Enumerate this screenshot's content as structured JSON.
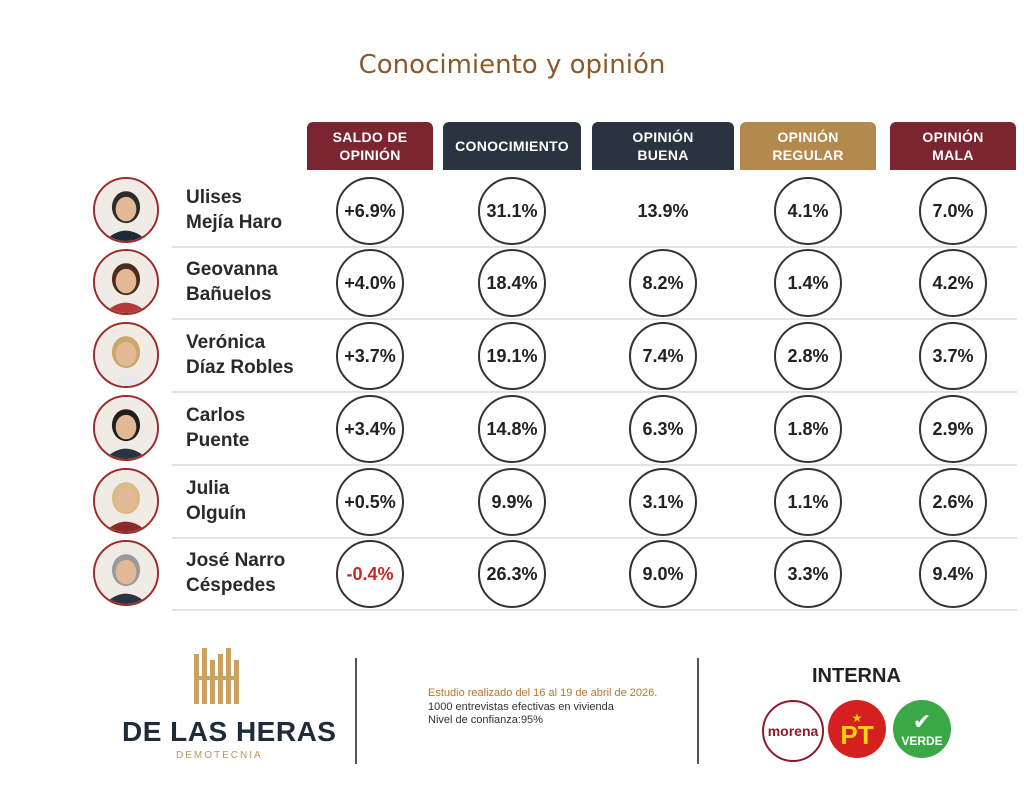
{
  "chart_data": {
    "type": "table",
    "title": "Conocimiento y opinión",
    "columns": [
      "SALDO DE OPINIÓN",
      "CONOCIMIENTO",
      "OPINIÓN BUENA",
      "OPINIÓN REGULAR",
      "OPINIÓN MALA"
    ],
    "column_colors": [
      "#7b2530",
      "#2a3440",
      "#2a3440",
      "#b4894e",
      "#7b2530"
    ],
    "rows": [
      {
        "name_line1": "Ulises",
        "name_line2": "Mejía Haro",
        "values": [
          "+6.9%",
          "31.1%",
          "13.9%",
          "4.1%",
          "7.0%"
        ]
      },
      {
        "name_line1": "Geovanna",
        "name_line2": "Bañuelos",
        "values": [
          "+4.0%",
          "18.4%",
          "8.2%",
          "1.4%",
          "4.2%"
        ]
      },
      {
        "name_line1": "Verónica",
        "name_line2": "Díaz Robles",
        "values": [
          "+3.7%",
          "19.1%",
          "7.4%",
          "2.8%",
          "3.7%"
        ]
      },
      {
        "name_line1": "Carlos",
        "name_line2": "Puente",
        "values": [
          "+3.4%",
          "14.8%",
          "6.3%",
          "1.8%",
          "2.9%"
        ]
      },
      {
        "name_line1": "Julia",
        "name_line2": "Olguín",
        "values": [
          "+0.5%",
          "9.9%",
          "3.1%",
          "1.1%",
          "2.6%"
        ]
      },
      {
        "name_line1": "José Narro",
        "name_line2": "Céspedes",
        "values": [
          "-0.4%",
          "26.3%",
          "9.0%",
          "3.3%",
          "9.4%"
        ]
      }
    ]
  },
  "footer": {
    "brand": "DE LAS HERAS",
    "brand_sub": "DEMOTECNIA",
    "study_line1": "Estudio realizado del 16 al 19 de abril de 2026.",
    "study_line2": "1000 entrevistas efectivas en vivienda",
    "study_line3": "Nivel de confianza:95%",
    "interna": "INTERNA",
    "parties": [
      "morena",
      "PT",
      "VERDE"
    ]
  },
  "colors": {
    "negative": "#c62828",
    "title": "#8a5a2b"
  }
}
